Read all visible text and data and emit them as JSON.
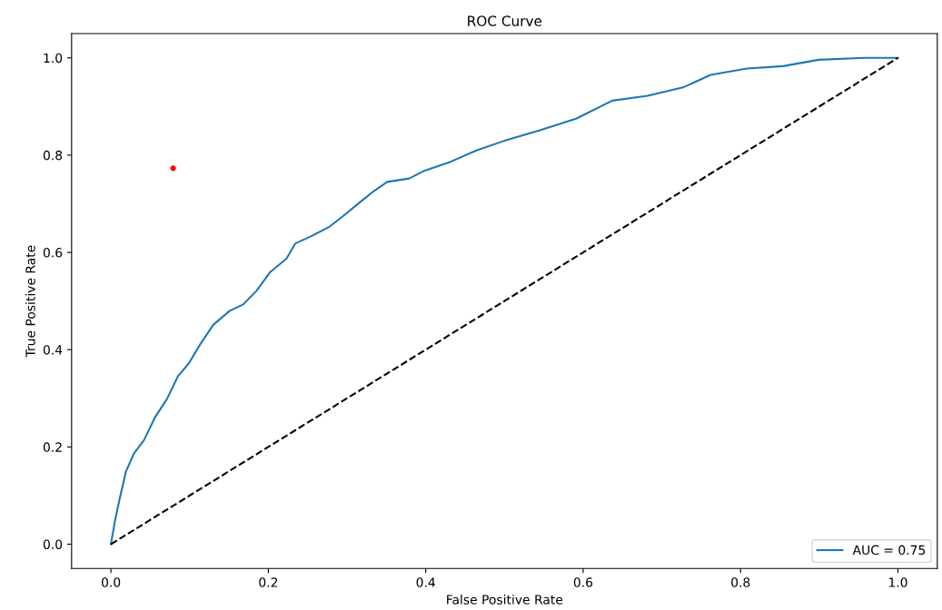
{
  "chart_data": {
    "type": "line",
    "title": "ROC Curve",
    "xlabel": "False Positive Rate",
    "ylabel": "True Positive Rate",
    "xlim": [
      -0.05,
      1.05
    ],
    "ylim": [
      -0.05,
      1.05
    ],
    "xticks": [
      {
        "value": 0,
        "label": "0.0"
      },
      0.2,
      0.4,
      0.6,
      0.8,
      {
        "value": 1,
        "label": "1.0"
      }
    ],
    "yticks": [
      {
        "value": 0,
        "label": "0.0"
      },
      0.2,
      0.4,
      0.6,
      0.8,
      {
        "value": 1,
        "label": "1.0"
      }
    ],
    "grid": false,
    "legend": "bottom right",
    "series": [
      {
        "name": "AUC = 0.75",
        "color": "#1f77b4",
        "line_style": "solid",
        "x": [
          0,
          0.005,
          0.011,
          0.019,
          0.029,
          0.042,
          0.056,
          0.071,
          0.085,
          0.099,
          0.113,
          0.13,
          0.151,
          0.168,
          0.185,
          0.202,
          0.223,
          0.234,
          0.254,
          0.277,
          0.299,
          0.317,
          0.334,
          0.351,
          0.379,
          0.397,
          0.431,
          0.465,
          0.499,
          0.545,
          0.591,
          0.637,
          0.682,
          0.728,
          0.762,
          0.808,
          0.854,
          0.899,
          0.957,
          1
        ],
        "values": [
          0,
          0.047,
          0.093,
          0.149,
          0.186,
          0.214,
          0.261,
          0.298,
          0.345,
          0.372,
          0.41,
          0.451,
          0.48,
          0.493,
          0.521,
          0.559,
          0.587,
          0.618,
          0.633,
          0.652,
          0.68,
          0.704,
          0.726,
          0.745,
          0.752,
          0.767,
          0.786,
          0.81,
          0.829,
          0.851,
          0.875,
          0.912,
          0.922,
          0.94,
          0.965,
          0.978,
          0.983,
          0.996,
          1,
          1
        ]
      },
      {
        "color": "#000000",
        "line_style": "dashed",
        "x": [
          0,
          1
        ],
        "values": [
          0,
          1
        ]
      },
      {
        "type": "scatter",
        "color": "#ff0000",
        "marker": "circle",
        "x": [
          0.079
        ],
        "values": [
          0.773
        ]
      }
    ]
  }
}
